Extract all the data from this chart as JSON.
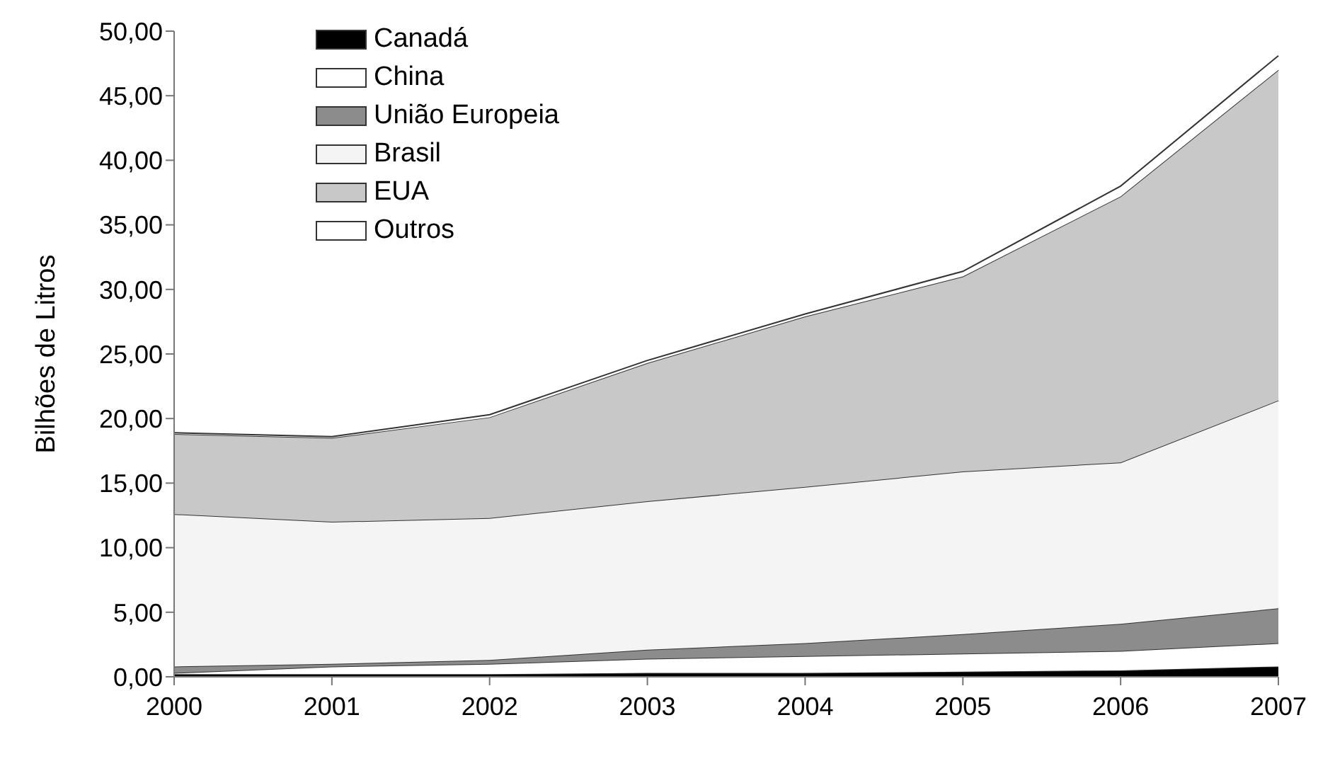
{
  "chart_data": {
    "type": "area",
    "stacked": true,
    "ylabel": "Bilhões de Litros",
    "categories": [
      "2000",
      "2001",
      "2002",
      "2003",
      "2004",
      "2005",
      "2006",
      "2007"
    ],
    "series": [
      {
        "name": "Canadá",
        "color": "#000000",
        "values": [
          0.2,
          0.2,
          0.2,
          0.3,
          0.3,
          0.4,
          0.5,
          0.8
        ]
      },
      {
        "name": "China",
        "color": "#ffffff",
        "values": [
          0.1,
          0.6,
          0.8,
          1.1,
          1.3,
          1.4,
          1.5,
          1.8
        ]
      },
      {
        "name": "União Europeia",
        "color": "#8c8c8c",
        "values": [
          0.5,
          0.2,
          0.3,
          0.7,
          1.0,
          1.5,
          2.1,
          2.7
        ]
      },
      {
        "name": "Brasil",
        "color": "#f4f4f4",
        "values": [
          11.8,
          11.0,
          11.0,
          11.5,
          12.1,
          12.6,
          12.5,
          16.1
        ]
      },
      {
        "name": "EUA",
        "color": "#c8c8c8",
        "values": [
          6.2,
          6.5,
          7.8,
          10.7,
          13.2,
          15.1,
          20.6,
          25.6
        ]
      },
      {
        "name": "Outros",
        "color": "#ffffff",
        "values": [
          0.1,
          0.1,
          0.2,
          0.2,
          0.2,
          0.4,
          0.8,
          1.1
        ]
      }
    ],
    "ylim": [
      0,
      50
    ],
    "yticks": [
      {
        "value": 0,
        "label": "0,00"
      },
      {
        "value": 5,
        "label": "5,00"
      },
      {
        "value": 10,
        "label": "10,00"
      },
      {
        "value": 15,
        "label": "15,00"
      },
      {
        "value": 20,
        "label": "20,00"
      },
      {
        "value": 25,
        "label": "25,00"
      },
      {
        "value": 30,
        "label": "30,00"
      },
      {
        "value": 35,
        "label": "35,00"
      },
      {
        "value": 40,
        "label": "40,00"
      },
      {
        "value": 45,
        "label": "45,00"
      },
      {
        "value": 50,
        "label": "50,00"
      }
    ],
    "grid": false,
    "legend": "top left"
  }
}
